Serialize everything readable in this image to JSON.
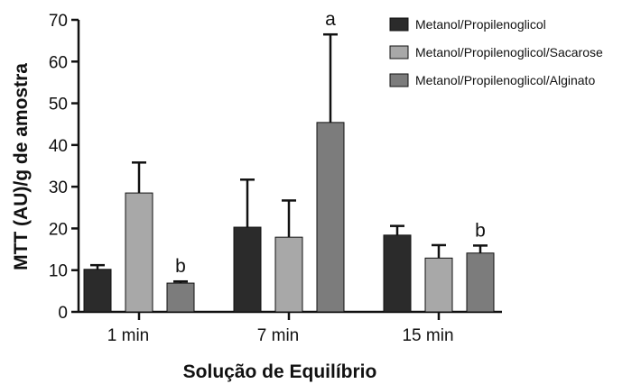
{
  "chart_data": {
    "type": "bar",
    "title": "",
    "xlabel": "Solução de Equilíbrio",
    "ylabel": "MTT (AU)/g de amostra",
    "ylim": [
      0,
      70
    ],
    "yticks": [
      0,
      10,
      20,
      30,
      40,
      50,
      60,
      70
    ],
    "categories": [
      "1 min",
      "7 min",
      "15 min"
    ],
    "series": [
      {
        "name": "Metanol/Propilenoglicol",
        "color": "#2b2b2b",
        "values": [
          10.2,
          20.3,
          18.4
        ],
        "errors": [
          1.0,
          11.4,
          2.2
        ],
        "annotations": [
          "",
          "",
          ""
        ]
      },
      {
        "name": "Metanol/Propilenoglicol/Sacarose",
        "color": "#a8a8a8",
        "values": [
          28.5,
          17.9,
          12.9
        ],
        "errors": [
          7.3,
          8.8,
          3.1
        ],
        "annotations": [
          "",
          "",
          ""
        ]
      },
      {
        "name": "Metanol/Propilenoglicol/Alginato",
        "color": "#7c7c7c",
        "values": [
          6.9,
          45.4,
          14.1
        ],
        "errors": [
          0.4,
          21.1,
          1.8
        ],
        "annotations": [
          "b",
          "a",
          "b"
        ]
      }
    ],
    "legend_position": "top-right",
    "grid": false
  }
}
